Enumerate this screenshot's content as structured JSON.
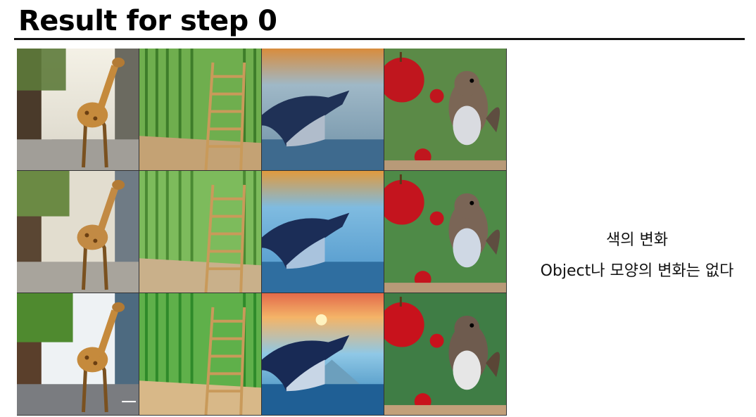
{
  "slide": {
    "title": "Result for step 0",
    "note_line1": "색의 변화",
    "note_line2": "Object나 모양의 변화는 없다"
  },
  "grid": {
    "rows": 3,
    "columns": [
      "giraffe-image",
      "bamboo-ladder-image",
      "whale-image",
      "squirrel-apple-image"
    ]
  }
}
